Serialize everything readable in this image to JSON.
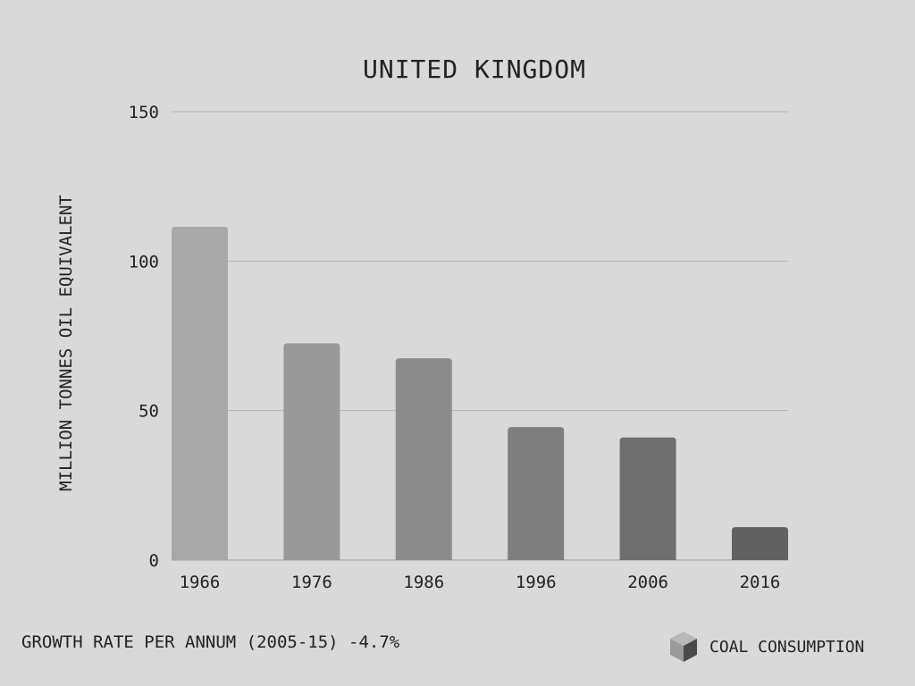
{
  "chart_data": {
    "type": "bar",
    "title": "UNITED KINGDOM",
    "ylabel": "MILLION TONNES OIL EQUIVALENT",
    "xlabel": "",
    "categories": [
      "1966",
      "1976",
      "1986",
      "1996",
      "2006",
      "2016"
    ],
    "series": [
      {
        "name": "COAL CONSUMPTION",
        "values": [
          111.5,
          72.5,
          67.5,
          44.5,
          41,
          11
        ]
      }
    ],
    "ylim": [
      0,
      150
    ],
    "yticks": [
      0,
      50,
      100,
      150
    ],
    "grid": true,
    "bar_colors": [
      "#a8a8a8",
      "#999999",
      "#8c8c8c",
      "#7f7f7f",
      "#6e6e6e",
      "#616161"
    ],
    "legend_position": "bottom-right"
  },
  "footer": {
    "note": "GROWTH RATE PER ANNUM (2005-15) -4.7%"
  },
  "legend": {
    "label": "COAL CONSUMPTION",
    "icon": "cube-icon"
  }
}
